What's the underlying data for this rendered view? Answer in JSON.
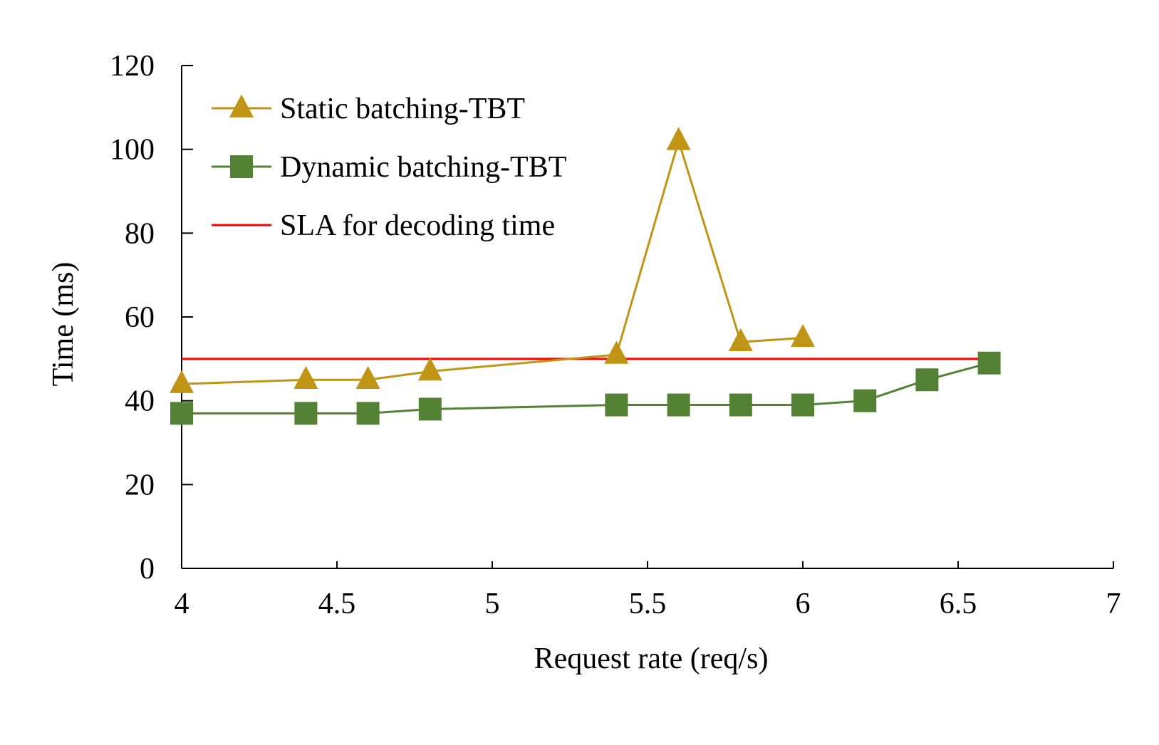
{
  "chart_data": {
    "type": "line",
    "title": "",
    "xlabel": "Request rate (req/s)",
    "ylabel": "Time (ms)",
    "xlim": [
      4,
      7
    ],
    "ylim": [
      0,
      120
    ],
    "xticks": [
      4,
      4.5,
      5,
      5.5,
      6,
      6.5,
      7
    ],
    "yticks": [
      0,
      20,
      40,
      60,
      80,
      100,
      120
    ],
    "xtick_labels": [
      "4",
      "4.5",
      "5",
      "5.5",
      "6",
      "6.5",
      "7"
    ],
    "ytick_labels": [
      "0",
      "20",
      "40",
      "60",
      "80",
      "100",
      "120"
    ],
    "grid": false,
    "legend_position": "top-left",
    "series": [
      {
        "name": "Static batching-TBT",
        "color": "#C09414",
        "marker": "triangle",
        "x": [
          4.0,
          4.4,
          4.6,
          4.8,
          5.4,
          5.6,
          5.8,
          6.0
        ],
        "values": [
          44,
          45,
          45,
          47,
          51,
          102,
          54,
          55
        ]
      },
      {
        "name": "Dynamic batching-TBT",
        "color": "#548235",
        "marker": "square",
        "x": [
          4.0,
          4.4,
          4.6,
          4.8,
          5.4,
          5.6,
          5.8,
          6.0,
          6.2,
          6.4,
          6.6
        ],
        "values": [
          37,
          37,
          37,
          38,
          39,
          39,
          39,
          39,
          40,
          45,
          49
        ]
      },
      {
        "name": "SLA for decoding time",
        "color": "#FF0000",
        "marker": "none",
        "x": [
          4.0,
          6.6
        ],
        "values": [
          50,
          50
        ]
      }
    ]
  }
}
